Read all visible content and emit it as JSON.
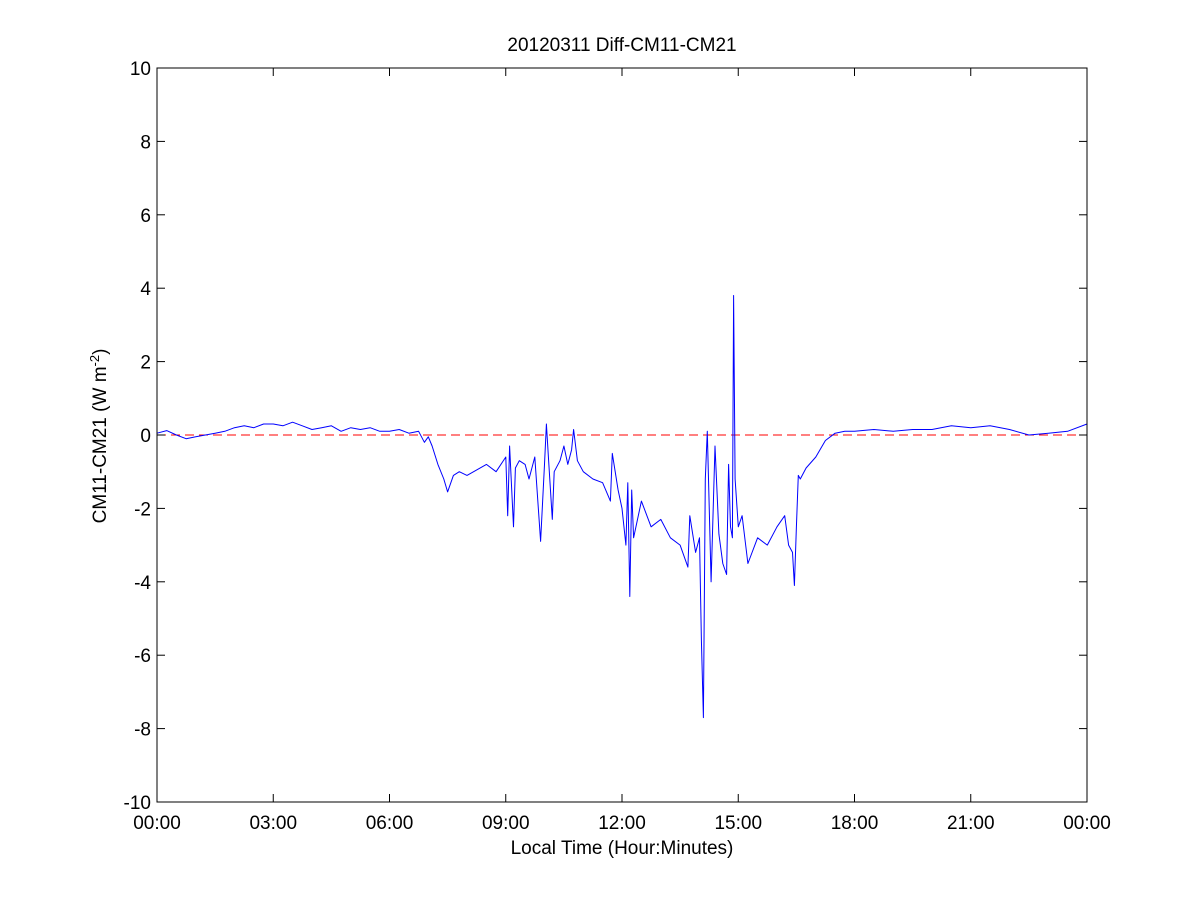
{
  "chart_data": {
    "type": "line",
    "title": "20120311 Diff-CM11-CM21",
    "xlabel": "Local Time (Hour:Minutes)",
    "ylabel": {
      "prefix": "CM11-CM21 (W m",
      "exponent": "-2",
      "suffix": ")"
    },
    "xlim": [
      0,
      24
    ],
    "ylim": [
      -10,
      10
    ],
    "x_ticks": [
      0,
      3,
      6,
      9,
      12,
      15,
      18,
      21,
      24
    ],
    "x_tick_labels": [
      "00:00",
      "03:00",
      "06:00",
      "09:00",
      "12:00",
      "15:00",
      "18:00",
      "21:00",
      "00:00"
    ],
    "y_ticks": [
      -10,
      -8,
      -6,
      -4,
      -2,
      0,
      2,
      4,
      6,
      8,
      10
    ],
    "y_tick_labels": [
      "-10",
      "-8",
      "-6",
      "-4",
      "-2",
      "0",
      "2",
      "4",
      "6",
      "8",
      "10"
    ],
    "grid": false,
    "reference_line": {
      "y": 0,
      "style": "dashed",
      "color": "#ff0000"
    },
    "series": [
      {
        "color": "#0000ff",
        "x": [
          0.0,
          0.25,
          0.5,
          0.75,
          1.0,
          1.25,
          1.5,
          1.75,
          2.0,
          2.25,
          2.5,
          2.75,
          3.0,
          3.25,
          3.5,
          3.75,
          4.0,
          4.25,
          4.5,
          4.75,
          5.0,
          5.25,
          5.5,
          5.75,
          6.0,
          6.25,
          6.5,
          6.75,
          6.9,
          7.0,
          7.1,
          7.25,
          7.4,
          7.5,
          7.65,
          7.8,
          8.0,
          8.25,
          8.5,
          8.75,
          9.0,
          9.05,
          9.1,
          9.2,
          9.25,
          9.35,
          9.5,
          9.6,
          9.75,
          9.9,
          10.0,
          10.05,
          10.1,
          10.2,
          10.25,
          10.4,
          10.5,
          10.6,
          10.7,
          10.75,
          10.85,
          11.0,
          11.25,
          11.5,
          11.7,
          11.75,
          11.9,
          12.0,
          12.1,
          12.15,
          12.2,
          12.25,
          12.3,
          12.5,
          12.75,
          13.0,
          13.25,
          13.5,
          13.7,
          13.75,
          13.9,
          14.0,
          14.05,
          14.1,
          14.15,
          14.2,
          14.3,
          14.4,
          14.5,
          14.6,
          14.7,
          14.75,
          14.8,
          14.85,
          14.88,
          14.92,
          15.0,
          15.1,
          15.25,
          15.5,
          15.75,
          16.0,
          16.2,
          16.3,
          16.4,
          16.45,
          16.5,
          16.55,
          16.6,
          16.75,
          17.0,
          17.25,
          17.5,
          17.75,
          18.0,
          18.5,
          19.0,
          19.5,
          20.0,
          20.5,
          21.0,
          21.5,
          22.0,
          22.5,
          23.0,
          23.5,
          24.0
        ],
        "y": [
          0.05,
          0.12,
          0.0,
          -0.1,
          -0.05,
          0.0,
          0.05,
          0.1,
          0.2,
          0.25,
          0.2,
          0.3,
          0.3,
          0.25,
          0.35,
          0.25,
          0.15,
          0.2,
          0.25,
          0.1,
          0.2,
          0.15,
          0.2,
          0.1,
          0.1,
          0.15,
          0.05,
          0.1,
          -0.2,
          -0.05,
          -0.3,
          -0.8,
          -1.2,
          -1.55,
          -1.1,
          -1.0,
          -1.1,
          -0.95,
          -0.8,
          -1.0,
          -0.6,
          -2.2,
          -0.3,
          -2.5,
          -0.9,
          -0.7,
          -0.8,
          -1.2,
          -0.6,
          -2.9,
          -0.8,
          0.3,
          -0.6,
          -2.3,
          -1.0,
          -0.7,
          -0.3,
          -0.8,
          -0.4,
          0.15,
          -0.7,
          -1.0,
          -1.2,
          -1.3,
          -1.8,
          -0.5,
          -1.5,
          -2.0,
          -3.0,
          -1.3,
          -4.4,
          -1.5,
          -2.8,
          -1.8,
          -2.5,
          -2.3,
          -2.8,
          -3.0,
          -3.6,
          -2.2,
          -3.2,
          -2.8,
          -5.6,
          -7.7,
          -1.2,
          0.1,
          -4.0,
          -0.3,
          -2.7,
          -3.5,
          -3.8,
          -0.8,
          -2.5,
          -2.8,
          3.8,
          -1.2,
          -2.5,
          -2.2,
          -3.5,
          -2.8,
          -3.0,
          -2.5,
          -2.2,
          -3.0,
          -3.2,
          -4.1,
          -2.5,
          -1.1,
          -1.2,
          -0.9,
          -0.6,
          -0.15,
          0.05,
          0.1,
          0.1,
          0.15,
          0.1,
          0.15,
          0.15,
          0.25,
          0.2,
          0.25,
          0.15,
          0.0,
          0.05,
          0.1,
          0.3
        ]
      }
    ]
  }
}
